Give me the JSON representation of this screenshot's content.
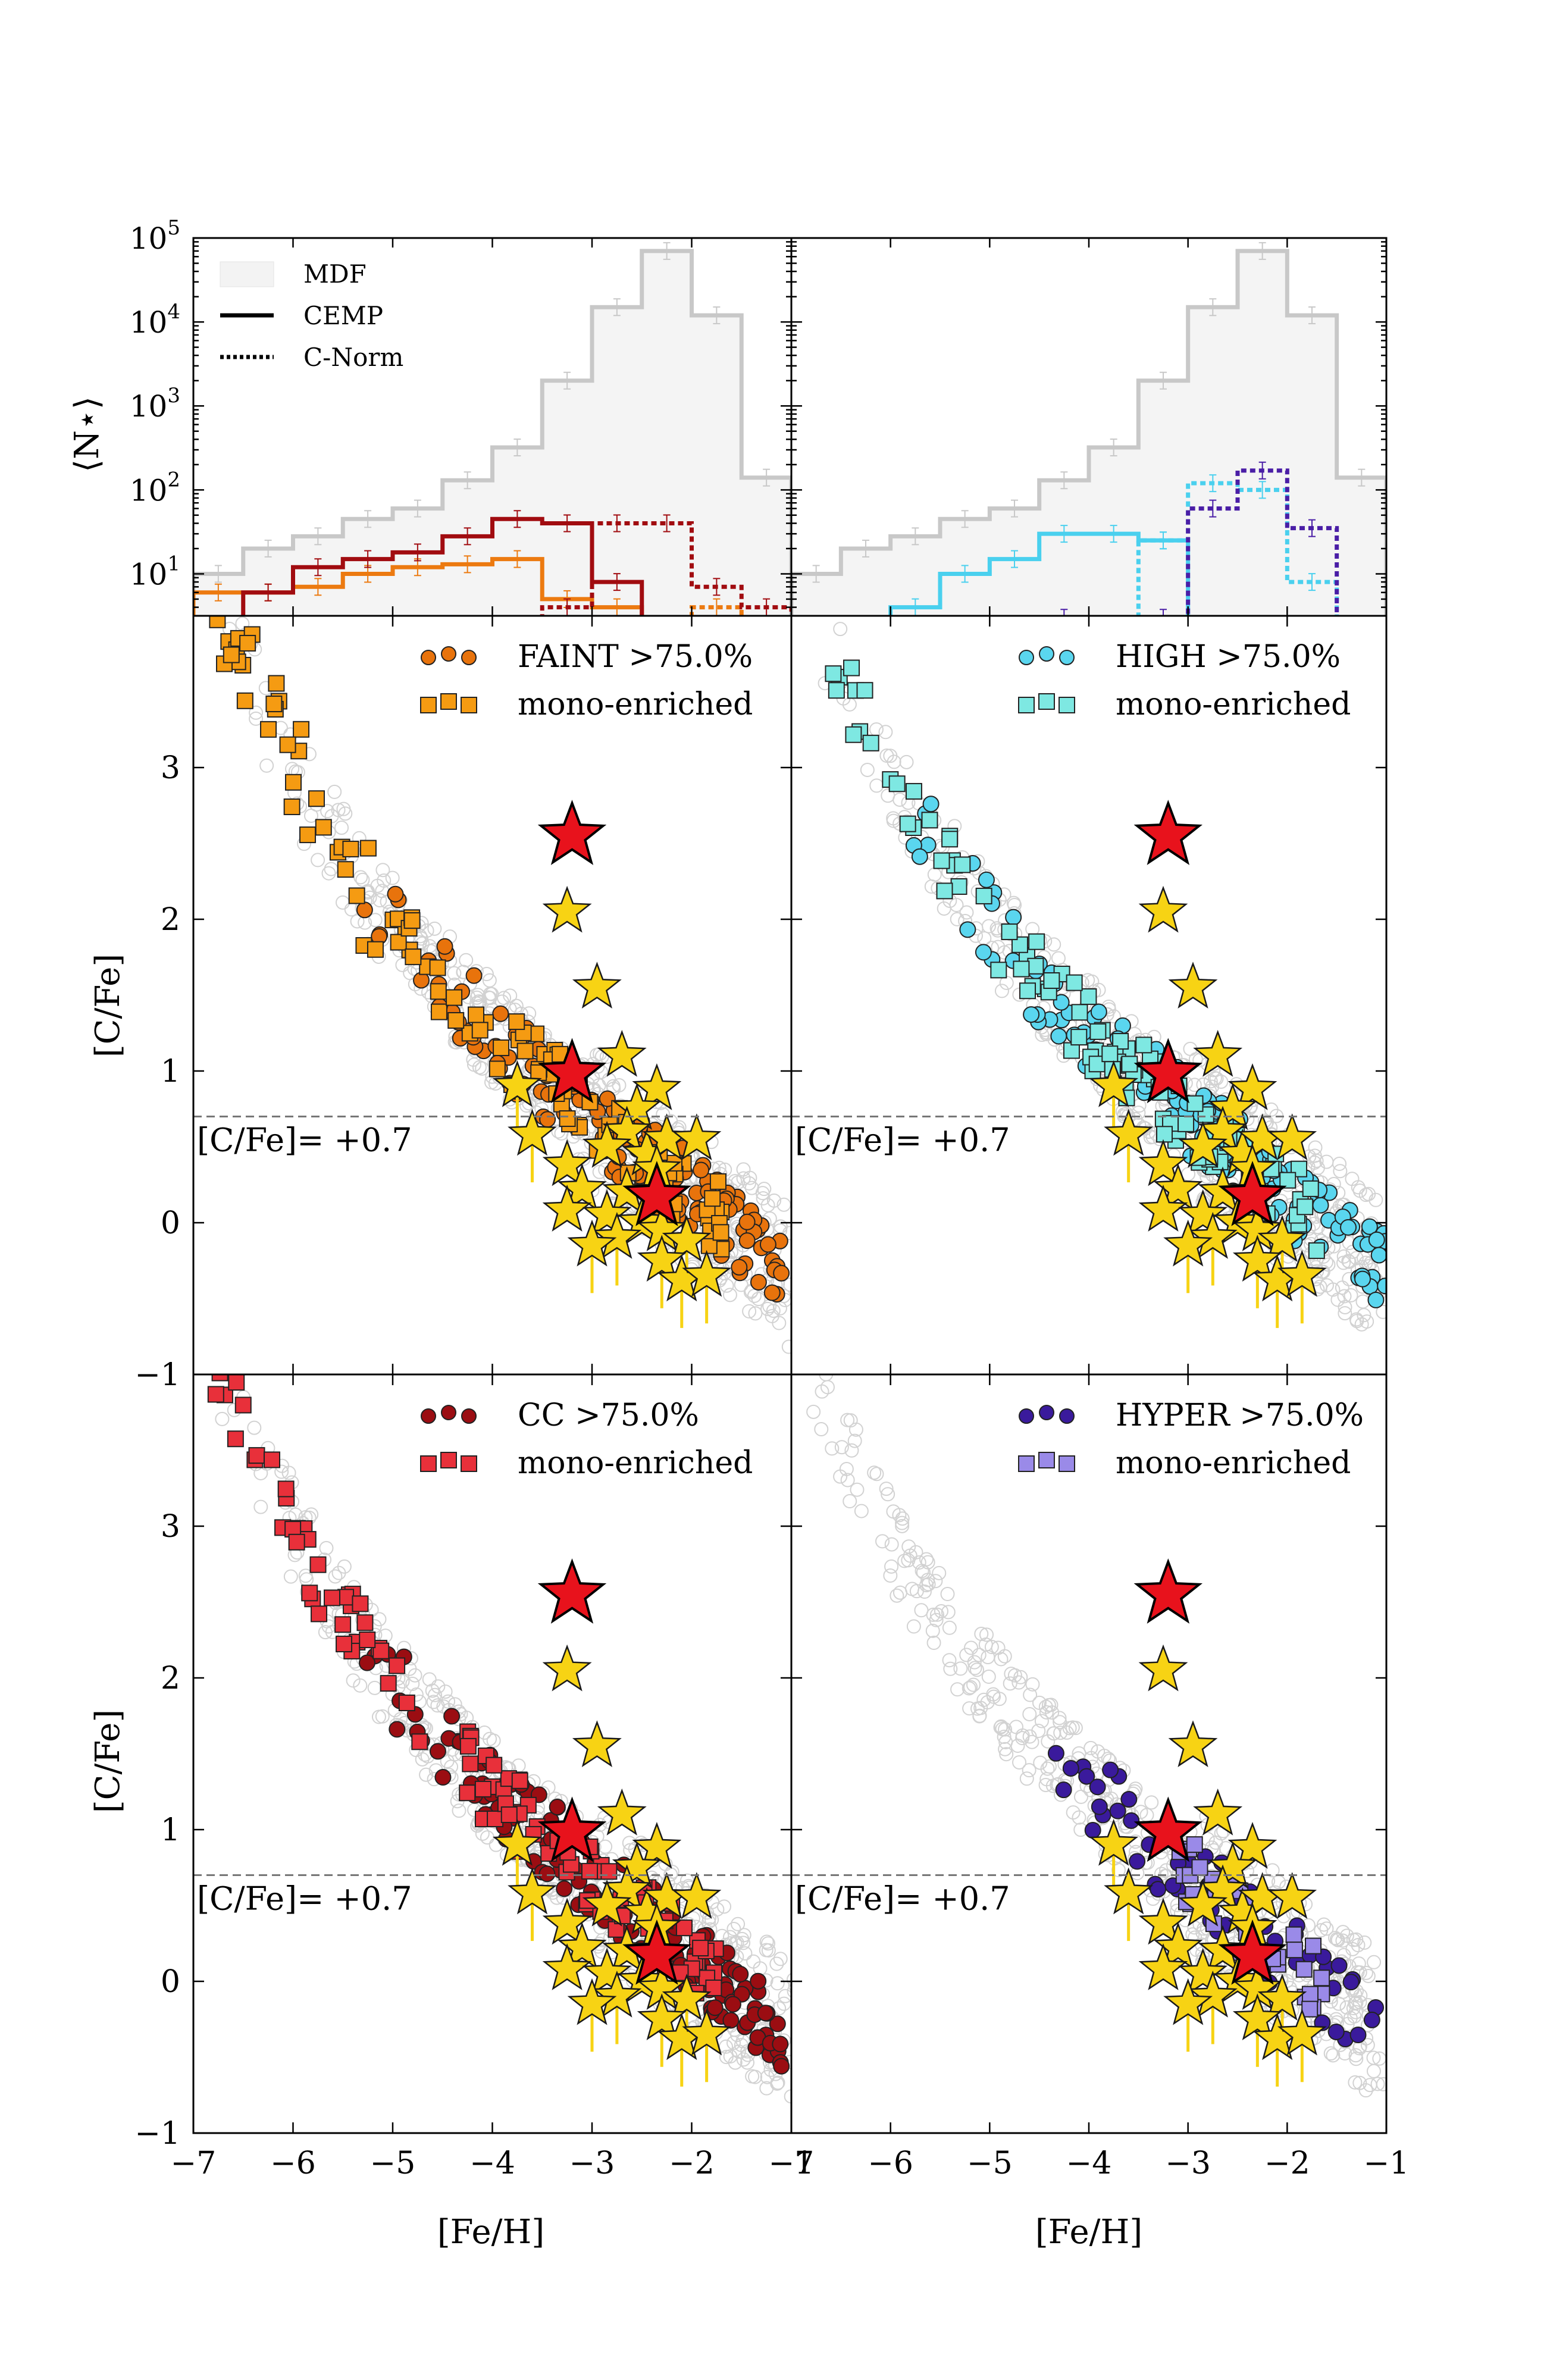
{
  "figure": {
    "shared": {
      "hist_ylabel": "⟨N⋆⟩",
      "hist_y_ticks": [
        {
          "base": "10",
          "exp": "1"
        },
        {
          "base": "10",
          "exp": "2"
        },
        {
          "base": "10",
          "exp": "3"
        },
        {
          "base": "10",
          "exp": "4"
        },
        {
          "base": "10",
          "exp": "5"
        }
      ],
      "scatter_ylabel": "[C/Fe]",
      "xlabel": "[Fe/H]",
      "x_ticks": [
        "−7",
        "−6",
        "−5",
        "−4",
        "−3",
        "−2",
        "−1"
      ],
      "y_ticks": [
        "−1",
        "0",
        "1",
        "2",
        "3"
      ],
      "threshold_label": "[C/Fe]= +0.7",
      "threshold_value": 0.7,
      "legend": {
        "mdf": "MDF",
        "cemp": "CEMP",
        "cnorm": "C-Norm"
      }
    },
    "colors": {
      "FAINT": {
        "fill": "#e8730c",
        "sq": "#f59b12"
      },
      "HIGH": {
        "fill": "#5ad6ef",
        "sq": "#7ee8e2"
      },
      "CC": {
        "fill": "#9b0d12",
        "sq": "#e8303a"
      },
      "HYPER": {
        "fill": "#3a1a9c",
        "sq": "#9a8ae8"
      },
      "mdf": "#c8c8c8",
      "stars": "#f7d314",
      "big_stars": "#e8121c"
    },
    "panels": [
      {
        "key": "FAINT",
        "label": "FAINT >75.0%",
        "mono_label": "mono-enriched"
      },
      {
        "key": "HIGH",
        "label": "HIGH >75.0%",
        "mono_label": "mono-enriched"
      },
      {
        "key": "CC",
        "label": "CC >75.0%",
        "mono_label": "mono-enriched"
      },
      {
        "key": "HYPER",
        "label": "HYPER >75.0%",
        "mono_label": "mono-enriched"
      }
    ]
  },
  "chart_data": [
    {
      "type": "histogram",
      "panel": "top-left",
      "xlim": [
        -7,
        -1
      ],
      "ylim_log10": [
        0.5,
        5
      ],
      "bin_edges": [
        -7.0,
        -6.5,
        -6.0,
        -5.5,
        -5.0,
        -4.5,
        -4.0,
        -3.5,
        -3.0,
        -2.5,
        -2.0,
        -1.5,
        -1.0
      ],
      "series": [
        {
          "name": "MDF",
          "values": [
            10,
            20,
            28,
            45,
            60,
            130,
            320,
            2000,
            15000,
            70000,
            12000,
            140
          ]
        },
        {
          "name": "FAINT CEMP",
          "style": "solid",
          "values": [
            6,
            6,
            7,
            10,
            12,
            13,
            15,
            5,
            4,
            0,
            0,
            0
          ]
        },
        {
          "name": "FAINT C-Norm",
          "style": "dotted",
          "values": [
            0,
            0,
            0,
            0,
            0,
            0,
            0,
            0,
            0,
            0,
            4,
            0
          ]
        },
        {
          "name": "CC CEMP",
          "style": "solid",
          "values": [
            0,
            6,
            12,
            15,
            18,
            28,
            45,
            40,
            8,
            0,
            0,
            0
          ]
        },
        {
          "name": "CC C-Norm",
          "style": "dotted",
          "values": [
            0,
            0,
            0,
            0,
            0,
            0,
            0,
            4,
            40,
            40,
            7,
            4
          ]
        }
      ]
    },
    {
      "type": "histogram",
      "panel": "top-right",
      "xlim": [
        -7,
        -1
      ],
      "ylim_log10": [
        0.5,
        5
      ],
      "bin_edges": [
        -7.0,
        -6.5,
        -6.0,
        -5.5,
        -5.0,
        -4.5,
        -4.0,
        -3.5,
        -3.0,
        -2.5,
        -2.0,
        -1.5,
        -1.0
      ],
      "series": [
        {
          "name": "MDF",
          "values": [
            10,
            20,
            28,
            45,
            60,
            130,
            320,
            2000,
            15000,
            70000,
            12000,
            140
          ]
        },
        {
          "name": "HIGH CEMP",
          "style": "solid",
          "values": [
            0,
            0,
            4,
            10,
            15,
            30,
            30,
            25,
            0,
            0,
            0,
            0
          ]
        },
        {
          "name": "HIGH C-Norm",
          "style": "dotted",
          "values": [
            0,
            0,
            0,
            0,
            0,
            0,
            0,
            25,
            120,
            100,
            8,
            0
          ]
        },
        {
          "name": "HYPER CEMP",
          "style": "solid",
          "values": [
            0,
            0,
            0,
            0,
            0,
            3,
            0,
            3,
            0,
            0,
            0,
            0
          ]
        },
        {
          "name": "HYPER C-Norm",
          "style": "dotted",
          "values": [
            0,
            0,
            0,
            0,
            0,
            0,
            0,
            0,
            60,
            170,
            35,
            0
          ]
        }
      ]
    },
    {
      "type": "scatter",
      "panels": [
        "FAINT",
        "HIGH",
        "CC",
        "HYPER"
      ],
      "xlim": [
        -7,
        -1
      ],
      "ylim": [
        -1,
        4
      ],
      "observed_stars": [
        {
          "x": -3.25,
          "y": 2.05
        },
        {
          "x": -2.95,
          "y": 1.55
        },
        {
          "x": -2.7,
          "y": 1.1
        },
        {
          "x": -3.75,
          "y": 0.9
        },
        {
          "x": -3.6,
          "y": 0.58
        },
        {
          "x": -2.35,
          "y": 0.88
        },
        {
          "x": -2.55,
          "y": 0.75
        },
        {
          "x": -2.65,
          "y": 0.6
        },
        {
          "x": -2.85,
          "y": 0.5
        },
        {
          "x": -3.25,
          "y": 0.38
        },
        {
          "x": -2.45,
          "y": 0.45
        },
        {
          "x": -2.25,
          "y": 0.55
        },
        {
          "x": -2.35,
          "y": 0.35
        },
        {
          "x": -1.95,
          "y": 0.55
        },
        {
          "x": -3.1,
          "y": 0.22
        },
        {
          "x": -2.65,
          "y": 0.2
        },
        {
          "x": -3.25,
          "y": 0.08
        },
        {
          "x": -2.85,
          "y": 0.05
        },
        {
          "x": -2.5,
          "y": 0.0
        },
        {
          "x": -2.3,
          "y": -0.05
        },
        {
          "x": -2.75,
          "y": -0.1
        },
        {
          "x": -3.0,
          "y": -0.15
        },
        {
          "x": -2.05,
          "y": -0.12
        },
        {
          "x": -2.3,
          "y": -0.25
        },
        {
          "x": -2.1,
          "y": -0.38
        },
        {
          "x": -1.85,
          "y": -0.35
        }
      ],
      "highlight_stars": [
        {
          "x": -3.2,
          "y": 2.55
        },
        {
          "x": -3.2,
          "y": 0.98
        },
        {
          "x": -2.35,
          "y": 0.17
        }
      ]
    }
  ]
}
